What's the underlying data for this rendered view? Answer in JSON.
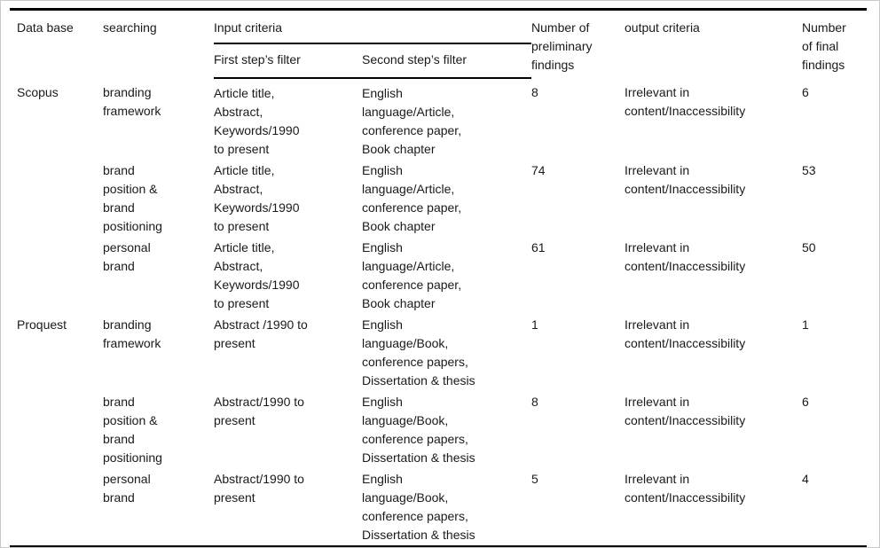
{
  "frame": {
    "border_color": "#c9c9c9",
    "rule_color": "#000000",
    "text_color": "#1a1a1a",
    "background_color": "#ffffff"
  },
  "table": {
    "columns": {
      "database": "Data base",
      "searching": "searching",
      "input_criteria": "Input criteria",
      "first_step_filter": "First step’s filter",
      "second_step_filter": "Second step’s filter",
      "preliminary_findings": "Number of\npreliminary\nfindings",
      "output_criteria": "output criteria",
      "final_findings": "Number\nof final\nfindings"
    },
    "rows": [
      {
        "database": "Scopus",
        "searching": "branding\nframework",
        "first_step": "Article title,\nAbstract,\nKeywords/1990\nto present",
        "second_step": "English\nlanguage/Article,\nconference paper,\nBook chapter",
        "preliminary": "8",
        "output": "Irrelevant in\ncontent/Inaccessibility",
        "final": "6"
      },
      {
        "database": "",
        "searching": "brand\nposition &\nbrand\npositioning",
        "first_step": "Article title,\nAbstract,\nKeywords/1990\nto present",
        "second_step": "English\nlanguage/Article,\nconference paper,\nBook chapter",
        "preliminary": "74",
        "output": "Irrelevant in\ncontent/Inaccessibility",
        "final": "53"
      },
      {
        "database": "",
        "searching": "personal\nbrand",
        "first_step": "Article title,\nAbstract,\nKeywords/1990\nto present",
        "second_step": "English\nlanguage/Article,\nconference paper,\nBook chapter",
        "preliminary": "61",
        "output": "Irrelevant in\ncontent/Inaccessibility",
        "final": "50"
      },
      {
        "database": "Proquest",
        "searching": "branding\nframework",
        "first_step": "Abstract /1990 to\npresent",
        "second_step": "English\nlanguage/Book,\nconference papers,\nDissertation & thesis",
        "preliminary": "1",
        "output": "Irrelevant in\ncontent/Inaccessibility",
        "final": "1"
      },
      {
        "database": "",
        "searching": "brand\nposition &\nbrand\npositioning",
        "first_step": "Abstract/1990 to\npresent",
        "second_step": "English\nlanguage/Book,\nconference papers,\nDissertation & thesis",
        "preliminary": "8",
        "output": "Irrelevant in\ncontent/Inaccessibility",
        "final": "6"
      },
      {
        "database": "",
        "searching": "personal\nbrand",
        "first_step": "Abstract/1990 to\npresent",
        "second_step": "English\nlanguage/Book,\nconference papers,\nDissertation & thesis",
        "preliminary": "5",
        "output": "Irrelevant in\ncontent/Inaccessibility",
        "final": "4"
      }
    ]
  }
}
